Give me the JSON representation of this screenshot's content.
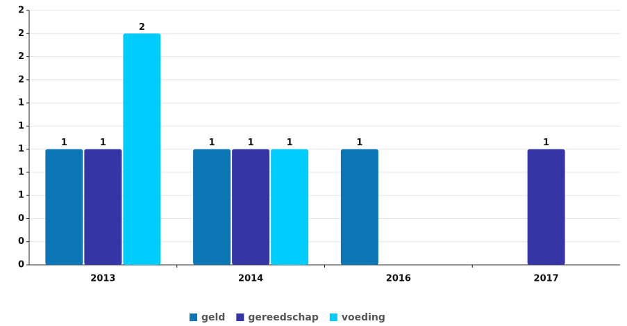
{
  "chart_data": {
    "type": "bar",
    "categories": [
      "2013",
      "2014",
      "2016",
      "2017"
    ],
    "series": [
      {
        "name": "geld",
        "color": "#0a76b4",
        "values": [
          1,
          1,
          1,
          null
        ]
      },
      {
        "name": "gereedschap",
        "color": "#3535a6",
        "values": [
          1,
          1,
          null,
          1
        ]
      },
      {
        "name": "voeding",
        "color": "#00ccfb",
        "values": [
          2,
          1,
          null,
          null
        ]
      }
    ],
    "ylim": [
      0,
      2.2
    ],
    "yticks": [
      0,
      {
        "value": 0.2,
        "label": "0"
      },
      {
        "value": 0.4,
        "label": "0"
      },
      {
        "value": 0.6,
        "label": "1"
      },
      {
        "value": 0.8,
        "label": "1"
      },
      1,
      {
        "value": 1.2,
        "label": "1"
      },
      {
        "value": 1.4,
        "label": "1"
      },
      {
        "value": 1.6,
        "label": "2"
      },
      {
        "value": 1.8,
        "label": "2"
      },
      2,
      {
        "value": 2.2,
        "label": "2"
      }
    ],
    "grid": true
  }
}
